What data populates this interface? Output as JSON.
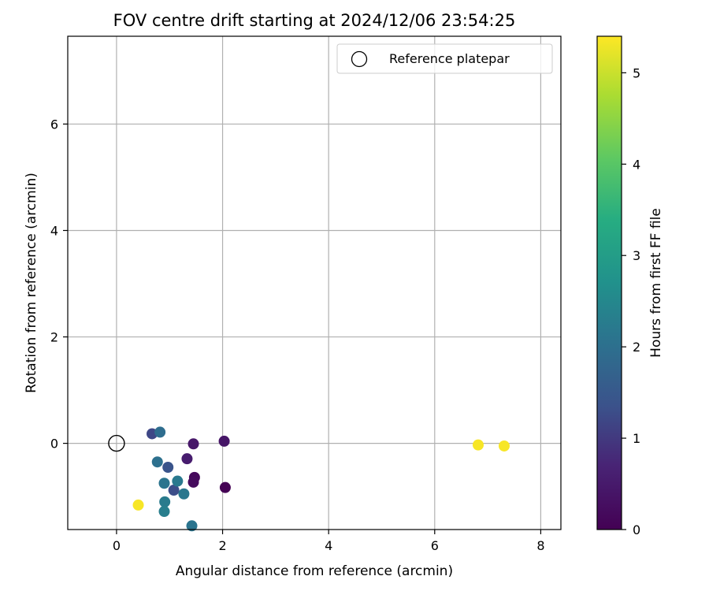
{
  "chart_data": {
    "type": "scatter",
    "title": "FOV centre drift starting at 2024/12/06 23:54:25",
    "xlabel": "Angular distance from reference (arcmin)",
    "ylabel": "Rotation from reference (arcmin)",
    "xlim": [
      -0.92,
      8.38
    ],
    "ylim": [
      -1.62,
      7.65
    ],
    "xticks": [
      0,
      2,
      4,
      6,
      8
    ],
    "yticks": [
      0,
      2,
      4,
      6
    ],
    "grid": true,
    "legend": {
      "position": "top-right",
      "entries": [
        "Reference platepar"
      ]
    },
    "reference": {
      "name": "Reference platepar",
      "x": 0,
      "y": 0
    },
    "colorbar": {
      "label": "Hours from first FF file",
      "colormap": "viridis",
      "range": [
        0,
        5.4
      ],
      "ticks": [
        0,
        1,
        2,
        3,
        4,
        5
      ]
    },
    "points": [
      {
        "x": 2.05,
        "y": -0.83,
        "hours": 0.0
      },
      {
        "x": 1.47,
        "y": -0.64,
        "hours": 0.15
      },
      {
        "x": 1.45,
        "y": -0.73,
        "hours": 0.2
      },
      {
        "x": 2.03,
        "y": 0.04,
        "hours": 0.4
      },
      {
        "x": 1.45,
        "y": -0.01,
        "hours": 0.45
      },
      {
        "x": 1.33,
        "y": -0.29,
        "hours": 0.55
      },
      {
        "x": 0.67,
        "y": 0.18,
        "hours": 1.2
      },
      {
        "x": 1.08,
        "y": -0.88,
        "hours": 1.3
      },
      {
        "x": 0.97,
        "y": -0.45,
        "hours": 1.4
      },
      {
        "x": 0.82,
        "y": 0.21,
        "hours": 1.95
      },
      {
        "x": 0.77,
        "y": -0.35,
        "hours": 2.0
      },
      {
        "x": 0.9,
        "y": -0.75,
        "hours": 2.1
      },
      {
        "x": 1.15,
        "y": -0.71,
        "hours": 2.2
      },
      {
        "x": 1.27,
        "y": -0.95,
        "hours": 2.15
      },
      {
        "x": 0.91,
        "y": -1.1,
        "hours": 2.25
      },
      {
        "x": 0.9,
        "y": -1.28,
        "hours": 2.3
      },
      {
        "x": 1.42,
        "y": -1.55,
        "hours": 2.1
      },
      {
        "x": 0.41,
        "y": -1.16,
        "hours": 5.35
      },
      {
        "x": 6.82,
        "y": -0.03,
        "hours": 5.35
      },
      {
        "x": 7.31,
        "y": -0.05,
        "hours": 5.35
      }
    ]
  }
}
